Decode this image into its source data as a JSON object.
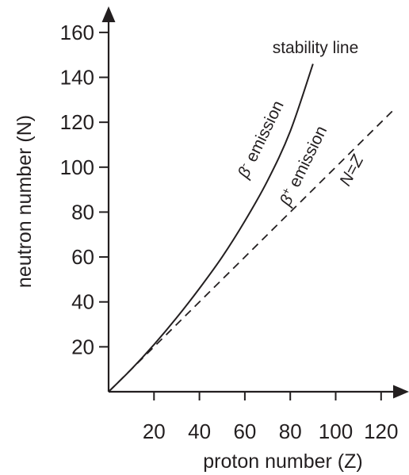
{
  "chart_data": {
    "type": "line",
    "xlabel": "proton number (Z)",
    "ylabel": "neutron number (N)",
    "xlim": [
      0,
      130
    ],
    "ylim": [
      0,
      165
    ],
    "x_ticks": [
      20,
      40,
      60,
      80,
      100,
      120
    ],
    "y_ticks": [
      20,
      40,
      60,
      80,
      100,
      120,
      140,
      160
    ],
    "x_tick_labels": [
      "20",
      "40",
      "60",
      "80",
      "100",
      "120"
    ],
    "y_tick_labels": [
      "20",
      "40",
      "60",
      "80",
      "100",
      "120",
      "140",
      "160"
    ],
    "grid": false,
    "series": [
      {
        "name": "stability line",
        "style": "solid",
        "color": "#231f20",
        "x": [
          0,
          10,
          20,
          30,
          40,
          50,
          60,
          70,
          80,
          90
        ],
        "y": [
          0,
          10,
          21,
          33,
          46,
          60,
          76,
          94,
          116,
          146
        ]
      },
      {
        "name": "N=Z",
        "style": "dashed",
        "color": "#231f20",
        "x": [
          0,
          125
        ],
        "y": [
          0,
          125
        ]
      }
    ],
    "annotations": {
      "beta_minus": {
        "symbol": "β",
        "sup": "-",
        "text": " emission"
      },
      "beta_plus": {
        "symbol": "β",
        "sup": "+",
        "text": " emission"
      }
    }
  }
}
